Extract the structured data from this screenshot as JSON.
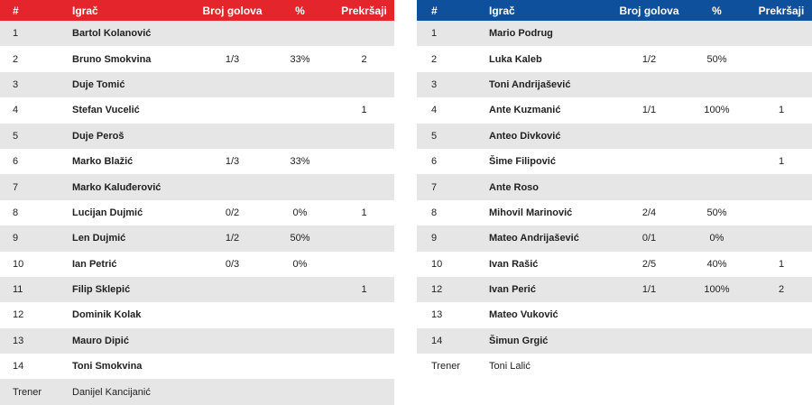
{
  "headers": {
    "num": "#",
    "player": "Igrač",
    "goals": "Broj golova",
    "pct": "%",
    "fouls": "Prekršaji"
  },
  "home": {
    "accent": "#e4252c",
    "players": [
      {
        "num": "1",
        "name": "Bartol Kolanović",
        "goals": "",
        "pct": "",
        "fouls": ""
      },
      {
        "num": "2",
        "name": "Bruno Smokvina",
        "goals": "1/3",
        "pct": "33%",
        "fouls": "2"
      },
      {
        "num": "3",
        "name": "Duje Tomić",
        "goals": "",
        "pct": "",
        "fouls": ""
      },
      {
        "num": "4",
        "name": "Stefan Vucelić",
        "goals": "",
        "pct": "",
        "fouls": "1"
      },
      {
        "num": "5",
        "name": "Duje Peroš",
        "goals": "",
        "pct": "",
        "fouls": ""
      },
      {
        "num": "6",
        "name": "Marko Blažić",
        "goals": "1/3",
        "pct": "33%",
        "fouls": ""
      },
      {
        "num": "7",
        "name": "Marko Kaluđerović",
        "goals": "",
        "pct": "",
        "fouls": ""
      },
      {
        "num": "8",
        "name": "Lucijan Dujmić",
        "goals": "0/2",
        "pct": "0%",
        "fouls": "1"
      },
      {
        "num": "9",
        "name": "Len Dujmić",
        "goals": "1/2",
        "pct": "50%",
        "fouls": ""
      },
      {
        "num": "10",
        "name": "Ian Petrić",
        "goals": "0/3",
        "pct": "0%",
        "fouls": ""
      },
      {
        "num": "11",
        "name": "Filip Sklepić",
        "goals": "",
        "pct": "",
        "fouls": "1"
      },
      {
        "num": "12",
        "name": "Dominik Kolak",
        "goals": "",
        "pct": "",
        "fouls": ""
      },
      {
        "num": "13",
        "name": "Mauro Dipić",
        "goals": "",
        "pct": "",
        "fouls": ""
      },
      {
        "num": "14",
        "name": "Toni Smokvina",
        "goals": "",
        "pct": "",
        "fouls": ""
      }
    ],
    "coach_label": "Trener",
    "coach_name": "Danijel Kancijanić"
  },
  "away": {
    "accent": "#0f509c",
    "players": [
      {
        "num": "1",
        "name": "Mario Podrug",
        "goals": "",
        "pct": "",
        "fouls": ""
      },
      {
        "num": "2",
        "name": "Luka Kaleb",
        "goals": "1/2",
        "pct": "50%",
        "fouls": ""
      },
      {
        "num": "3",
        "name": "Toni Andrijašević",
        "goals": "",
        "pct": "",
        "fouls": ""
      },
      {
        "num": "4",
        "name": "Ante Kuzmanić",
        "goals": "1/1",
        "pct": "100%",
        "fouls": "1"
      },
      {
        "num": "5",
        "name": "Anteo Divković",
        "goals": "",
        "pct": "",
        "fouls": ""
      },
      {
        "num": "6",
        "name": "Šime Filipović",
        "goals": "",
        "pct": "",
        "fouls": "1"
      },
      {
        "num": "7",
        "name": "Ante Roso",
        "goals": "",
        "pct": "",
        "fouls": ""
      },
      {
        "num": "8",
        "name": "Mihovil Marinović",
        "goals": "2/4",
        "pct": "50%",
        "fouls": ""
      },
      {
        "num": "9",
        "name": "Mateo Andrijašević",
        "goals": "0/1",
        "pct": "0%",
        "fouls": ""
      },
      {
        "num": "10",
        "name": "Ivan Rašić",
        "goals": "2/5",
        "pct": "40%",
        "fouls": "1"
      },
      {
        "num": "12",
        "name": "Ivan Perić",
        "goals": "1/1",
        "pct": "100%",
        "fouls": "2"
      },
      {
        "num": "13",
        "name": "Mateo Vuković",
        "goals": "",
        "pct": "",
        "fouls": ""
      },
      {
        "num": "14",
        "name": "Šimun Grgić",
        "goals": "",
        "pct": "",
        "fouls": ""
      }
    ],
    "coach_label": "Trener",
    "coach_name": "Toni Lalić"
  }
}
